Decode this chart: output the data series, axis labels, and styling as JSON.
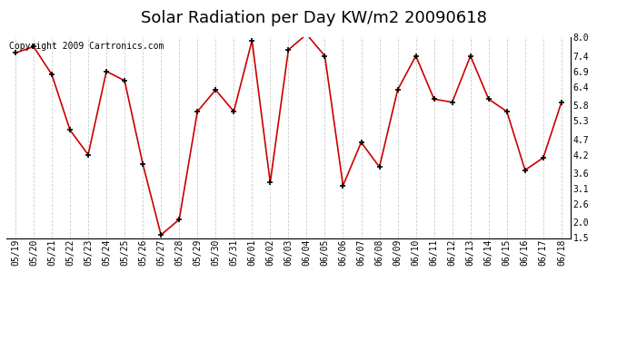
{
  "title": "Solar Radiation per Day KW/m2 20090618",
  "copyright_text": "Copyright 2009 Cartronics.com",
  "dates": [
    "05/19",
    "05/20",
    "05/21",
    "05/22",
    "05/23",
    "05/24",
    "05/25",
    "05/26",
    "05/27",
    "05/28",
    "05/29",
    "05/30",
    "05/31",
    "06/01",
    "06/02",
    "06/03",
    "06/04",
    "06/05",
    "06/06",
    "06/07",
    "06/08",
    "06/09",
    "06/10",
    "06/11",
    "06/12",
    "06/13",
    "06/14",
    "06/15",
    "06/16",
    "06/17",
    "06/18"
  ],
  "values": [
    7.5,
    7.7,
    6.8,
    5.0,
    4.2,
    6.9,
    6.6,
    3.9,
    1.6,
    2.1,
    5.6,
    6.3,
    5.6,
    7.9,
    3.3,
    7.6,
    8.1,
    7.4,
    3.2,
    4.6,
    3.8,
    6.3,
    7.4,
    6.0,
    5.9,
    7.4,
    6.0,
    5.6,
    3.7,
    4.1,
    5.9
  ],
  "line_color": "#cc0000",
  "marker_color": "#000000",
  "bg_color": "#ffffff",
  "grid_color": "#cccccc",
  "ylim": [
    1.5,
    8.0
  ],
  "yticks_right": [
    1.5,
    2.0,
    2.6,
    3.1,
    3.6,
    4.2,
    4.7,
    5.3,
    5.8,
    6.4,
    6.9,
    7.4,
    8.0
  ],
  "title_fontsize": 13,
  "copyright_fontsize": 7,
  "tick_fontsize": 7
}
